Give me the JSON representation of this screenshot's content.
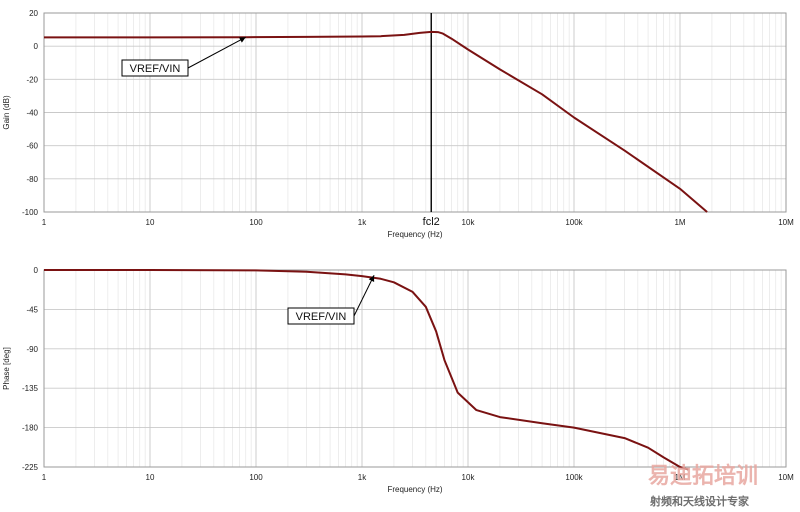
{
  "chart_data": [
    {
      "type": "line",
      "title": "",
      "xlabel": "Frequency (Hz)",
      "ylabel": "Gain (dB)",
      "x_scale": "log",
      "xlim": [
        1,
        10000000
      ],
      "ylim": [
        -100,
        20
      ],
      "x_ticks": [
        1,
        10,
        100,
        1000,
        10000,
        100000,
        1000000,
        10000000
      ],
      "x_tick_labels": [
        "1",
        "10",
        "100",
        "1k",
        "10k",
        "100k",
        "1M",
        "10M"
      ],
      "y_ticks": [
        20,
        0,
        -20,
        -40,
        -60,
        -80,
        -100
      ],
      "y_tick_labels": [
        "20",
        "0",
        "-20",
        "-40",
        "-60",
        "-80",
        "-100"
      ],
      "grid": true,
      "series": [
        {
          "name": "VREF/VIN",
          "color": "#7a1212",
          "x": [
            1,
            10,
            80,
            300,
            1000,
            1500,
            2500,
            3500,
            4500,
            5200,
            5800,
            7000,
            10000,
            20000,
            50000,
            100000,
            300000,
            1000000,
            1800000
          ],
          "y": [
            5.3,
            5.3,
            5.4,
            5.6,
            5.8,
            6.0,
            6.8,
            8.0,
            8.6,
            8.5,
            7.6,
            4.5,
            -2,
            -14,
            -29,
            -43,
            -63,
            -86,
            -100
          ]
        }
      ],
      "annotations": [
        {
          "text": "VREF/VIN",
          "x": 80,
          "y": 5.4
        },
        {
          "text": "fcl2",
          "x": 4500,
          "type": "vertical-marker"
        }
      ]
    },
    {
      "type": "line",
      "title": "",
      "xlabel": "Frequency (Hz)",
      "ylabel": "Phase [deg]",
      "x_scale": "log",
      "xlim": [
        1,
        10000000
      ],
      "ylim": [
        -225,
        0
      ],
      "x_ticks": [
        1,
        10,
        100,
        1000,
        10000,
        100000,
        1000000,
        10000000
      ],
      "x_tick_labels": [
        "1",
        "10",
        "100",
        "1k",
        "10k",
        "100k",
        "1M",
        "10M"
      ],
      "y_ticks": [
        0,
        -45,
        -90,
        -135,
        -180,
        -225
      ],
      "y_tick_labels": [
        "0",
        "-45",
        "-90",
        "-135",
        "-180",
        "-225"
      ],
      "grid": true,
      "series": [
        {
          "name": "VREF/VIN",
          "color": "#7a1212",
          "x": [
            1,
            10,
            100,
            300,
            700,
            1000,
            1500,
            2000,
            3000,
            4000,
            5000,
            6000,
            8000,
            12000,
            20000,
            50000,
            100000,
            300000,
            500000,
            700000,
            1000000,
            1200000
          ],
          "y": [
            0,
            0,
            -0.5,
            -2,
            -5,
            -7,
            -10,
            -14,
            -25,
            -42,
            -70,
            -103,
            -140,
            -160,
            -168,
            -175,
            -180,
            -192,
            -203,
            -214,
            -225,
            -228
          ]
        }
      ],
      "annotations": [
        {
          "text": "VREF/VIN",
          "x": 1300,
          "y": -6
        }
      ]
    }
  ],
  "watermark": {
    "title": "易迪拓培训",
    "subtitle": "射频和天线设计专家"
  }
}
